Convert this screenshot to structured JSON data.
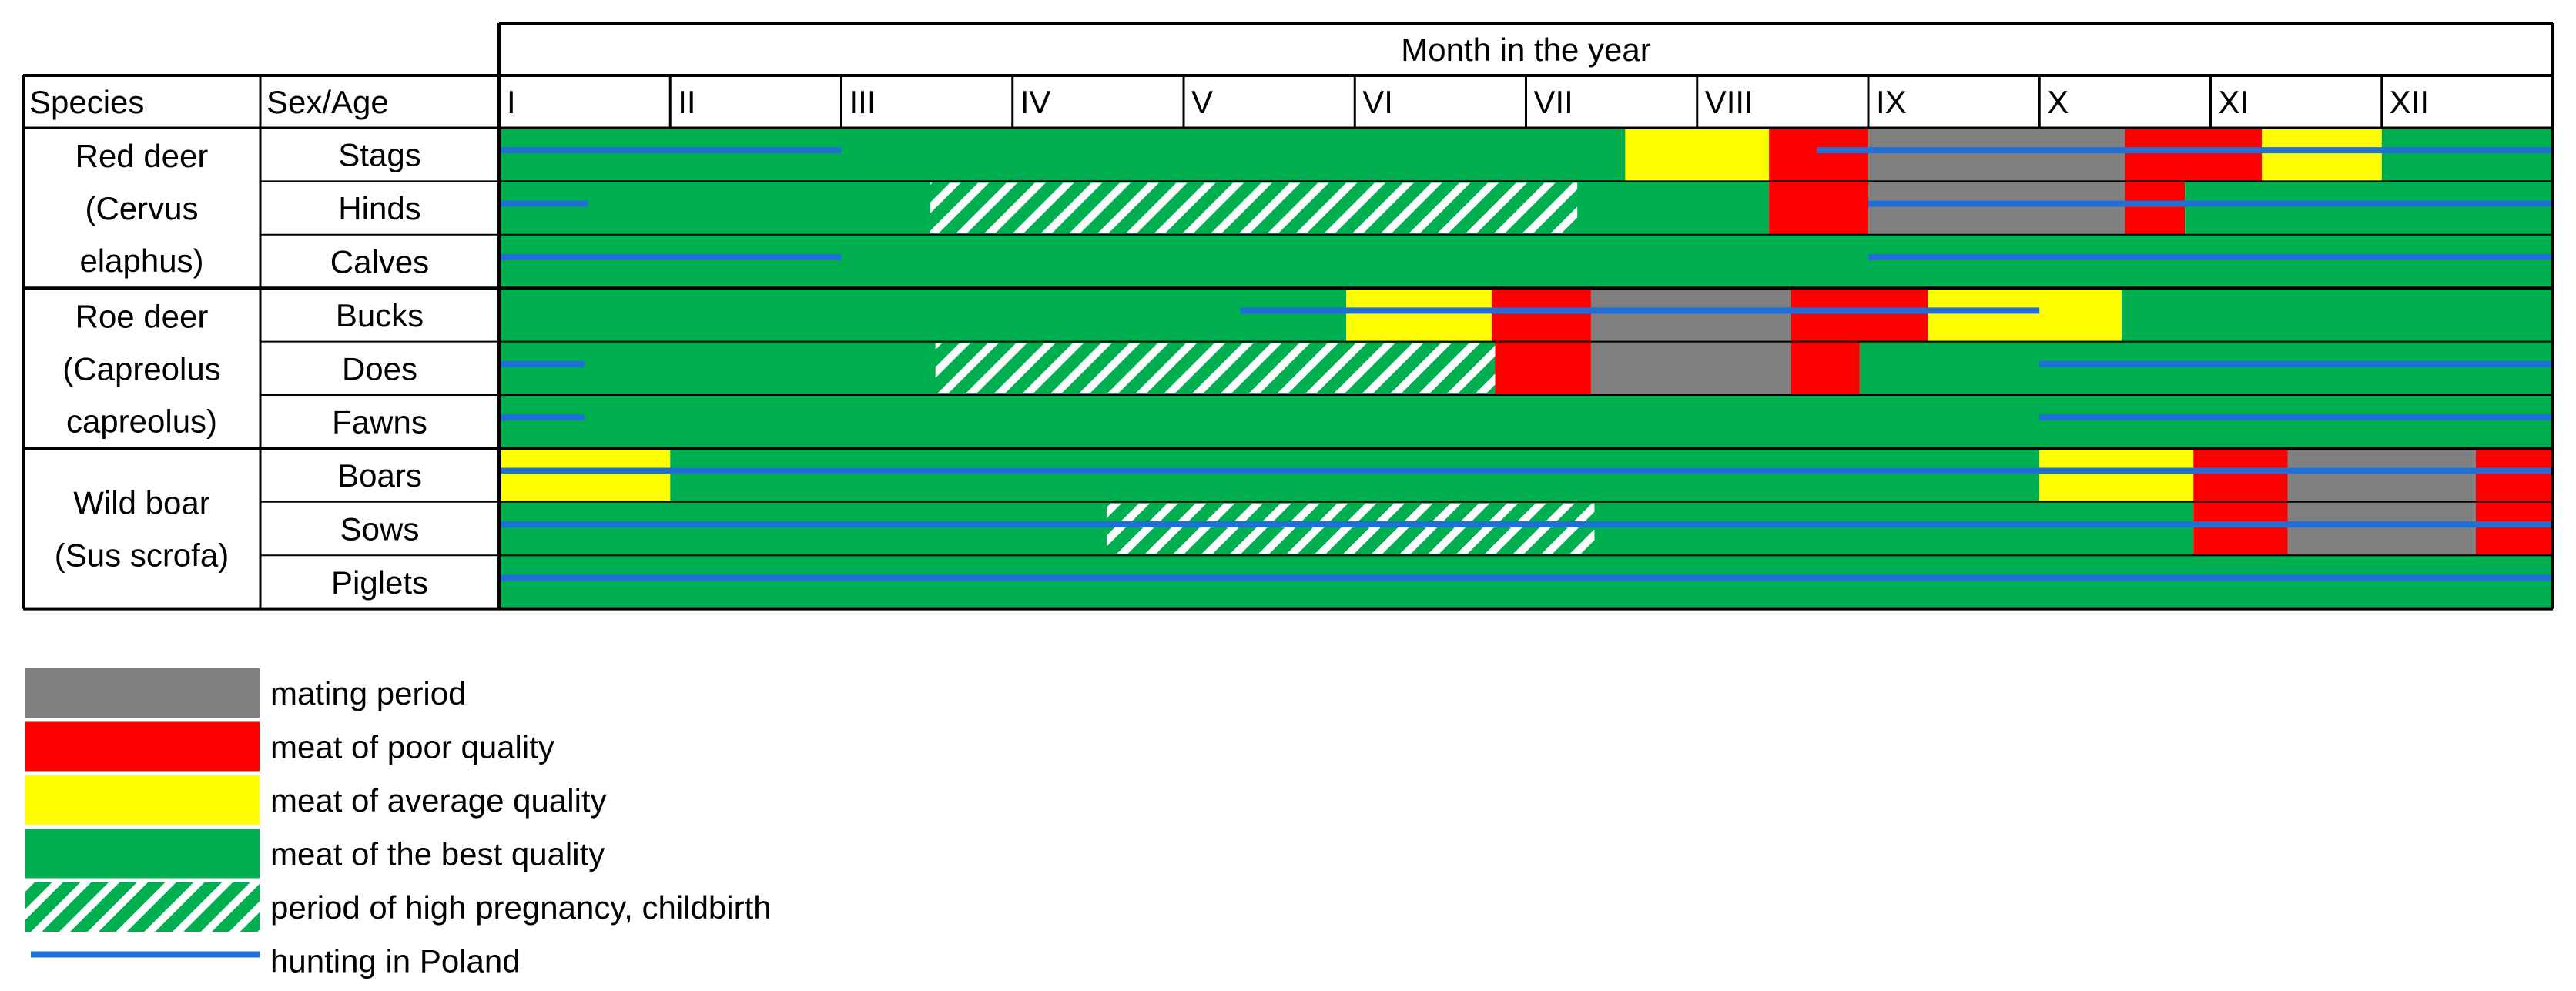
{
  "chart_data": {
    "type": "table",
    "header_title": "Month in the year",
    "column_headers": {
      "species": "Species",
      "sex_age": "Sex/Age"
    },
    "months": [
      "I",
      "II",
      "III",
      "IV",
      "V",
      "VI",
      "VII",
      "VIII",
      "IX",
      "X",
      "XI",
      "XII"
    ],
    "month_range": [
      1,
      13
    ],
    "colors": {
      "mating": "#808080",
      "poor": "#ff0000",
      "average": "#ffff00",
      "best": "#00b050",
      "pregnancy": "#00b050",
      "hunting": "#1f6fd9"
    },
    "groups": [
      {
        "species_lines": [
          "Red deer",
          "(Cervus",
          "elaphus)"
        ],
        "rows": [
          {
            "label": "Stags",
            "segments": [
              {
                "start": 1,
                "end": 7.58,
                "category": "best"
              },
              {
                "start": 7.58,
                "end": 8.42,
                "category": "average"
              },
              {
                "start": 8.42,
                "end": 9.0,
                "category": "poor"
              },
              {
                "start": 9.0,
                "end": 10.5,
                "category": "mating"
              },
              {
                "start": 10.5,
                "end": 11.3,
                "category": "poor"
              },
              {
                "start": 11.3,
                "end": 12.0,
                "category": "average"
              },
              {
                "start": 12.0,
                "end": 13,
                "category": "best"
              }
            ],
            "pregnancy": [],
            "hunting": [
              [
                1,
                3.0
              ],
              [
                8.7,
                13
              ]
            ]
          },
          {
            "label": "Hinds",
            "segments": [
              {
                "start": 1,
                "end": 8.42,
                "category": "best"
              },
              {
                "start": 8.42,
                "end": 9.0,
                "category": "poor"
              },
              {
                "start": 9.0,
                "end": 10.5,
                "category": "mating"
              },
              {
                "start": 10.5,
                "end": 10.85,
                "category": "poor"
              },
              {
                "start": 10.85,
                "end": 13,
                "category": "best"
              }
            ],
            "pregnancy": [
              [
                3.52,
                7.3
              ]
            ],
            "hunting": [
              [
                1,
                1.52
              ],
              [
                9.0,
                13
              ]
            ]
          },
          {
            "label": "Calves",
            "segments": [
              {
                "start": 1,
                "end": 13,
                "category": "best"
              }
            ],
            "pregnancy": [],
            "hunting": [
              [
                1,
                3.0
              ],
              [
                9.0,
                13
              ]
            ]
          }
        ]
      },
      {
        "species_lines": [
          "Roe deer",
          "(Capreolus",
          "capreolus)"
        ],
        "rows": [
          {
            "label": "Bucks",
            "segments": [
              {
                "start": 1,
                "end": 5.95,
                "category": "best"
              },
              {
                "start": 5.95,
                "end": 6.8,
                "category": "average"
              },
              {
                "start": 6.8,
                "end": 7.38,
                "category": "poor"
              },
              {
                "start": 7.38,
                "end": 8.55,
                "category": "mating"
              },
              {
                "start": 8.55,
                "end": 9.35,
                "category": "poor"
              },
              {
                "start": 9.35,
                "end": 10.48,
                "category": "average"
              },
              {
                "start": 10.48,
                "end": 13,
                "category": "best"
              }
            ],
            "pregnancy": [],
            "hunting": [
              [
                5.33,
                10.0
              ]
            ]
          },
          {
            "label": "Does",
            "segments": [
              {
                "start": 1,
                "end": 6.82,
                "category": "best"
              },
              {
                "start": 6.82,
                "end": 7.38,
                "category": "poor"
              },
              {
                "start": 7.38,
                "end": 8.55,
                "category": "mating"
              },
              {
                "start": 8.55,
                "end": 8.95,
                "category": "poor"
              },
              {
                "start": 8.95,
                "end": 13,
                "category": "best"
              }
            ],
            "pregnancy": [
              [
                3.55,
                6.82
              ]
            ],
            "hunting": [
              [
                1,
                1.5
              ],
              [
                10.0,
                13
              ]
            ]
          },
          {
            "label": "Fawns",
            "segments": [
              {
                "start": 1,
                "end": 13,
                "category": "best"
              }
            ],
            "pregnancy": [],
            "hunting": [
              [
                1,
                1.5
              ],
              [
                10.0,
                13
              ]
            ]
          }
        ]
      },
      {
        "species_lines": [
          "Wild boar",
          "(Sus scrofa)"
        ],
        "rows": [
          {
            "label": "Boars",
            "segments": [
              {
                "start": 1,
                "end": 2.0,
                "category": "average"
              },
              {
                "start": 2.0,
                "end": 10.0,
                "category": "best"
              },
              {
                "start": 10.0,
                "end": 10.9,
                "category": "average"
              },
              {
                "start": 10.9,
                "end": 11.45,
                "category": "poor"
              },
              {
                "start": 11.45,
                "end": 12.55,
                "category": "mating"
              },
              {
                "start": 12.55,
                "end": 13,
                "category": "poor"
              }
            ],
            "pregnancy": [],
            "hunting": [
              [
                1,
                13
              ]
            ]
          },
          {
            "label": "Sows",
            "segments": [
              {
                "start": 1,
                "end": 10.9,
                "category": "best"
              },
              {
                "start": 10.9,
                "end": 11.45,
                "category": "poor"
              },
              {
                "start": 11.45,
                "end": 12.55,
                "category": "mating"
              },
              {
                "start": 12.55,
                "end": 13,
                "category": "poor"
              }
            ],
            "pregnancy": [
              [
                4.55,
                7.4
              ]
            ],
            "hunting": [
              [
                1,
                13
              ]
            ]
          },
          {
            "label": "Piglets",
            "segments": [
              {
                "start": 1,
                "end": 13,
                "category": "best"
              }
            ],
            "pregnancy": [],
            "hunting": [
              [
                1,
                13
              ]
            ]
          }
        ]
      }
    ],
    "legend": [
      {
        "key": "mating",
        "label": "mating period"
      },
      {
        "key": "poor",
        "label": "meat of poor quality"
      },
      {
        "key": "average",
        "label": "meat of average quality"
      },
      {
        "key": "best",
        "label": "meat of the best quality"
      },
      {
        "key": "pregnancy",
        "label": "period of high pregnancy, childbirth"
      },
      {
        "key": "hunting",
        "label": "hunting in Poland"
      }
    ]
  }
}
